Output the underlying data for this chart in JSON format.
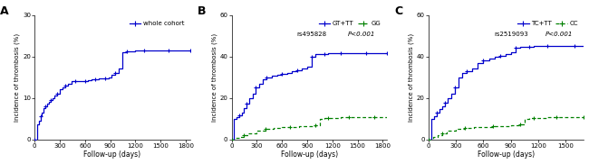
{
  "panel_A": {
    "label": "A",
    "ylabel": "Incidence of thrombosis (%)",
    "xlabel": "Follow-up (days)",
    "ylim": [
      0,
      30
    ],
    "xlim": [
      0,
      1850
    ],
    "yticks": [
      0,
      10,
      20,
      30
    ],
    "xticks": [
      0,
      300,
      600,
      900,
      1200,
      1500,
      1800
    ],
    "legend": "whole cohort",
    "line1": {
      "x": [
        0,
        30,
        50,
        70,
        90,
        110,
        130,
        150,
        170,
        190,
        210,
        240,
        270,
        300,
        330,
        360,
        400,
        440,
        480,
        520,
        560,
        600,
        640,
        680,
        720,
        760,
        800,
        840,
        880,
        920,
        960,
        1000,
        1050,
        1100,
        1150,
        1200,
        1300,
        1400,
        1500,
        1600,
        1700,
        1800,
        1850
      ],
      "y": [
        0,
        3.5,
        4.5,
        5.5,
        6.5,
        7.5,
        8,
        8.5,
        9,
        9.5,
        10,
        10.5,
        11,
        12,
        12.5,
        13,
        13.5,
        14,
        14,
        14,
        14,
        14,
        14.2,
        14.4,
        14.5,
        14.6,
        14.7,
        14.8,
        15,
        15.5,
        16,
        17,
        21,
        21.2,
        21.3,
        21.5,
        21.5,
        21.5,
        21.5,
        21.5,
        21.5,
        21.5,
        21.5
      ],
      "color": "#0000CC",
      "linestyle": "solid"
    }
  },
  "panel_B": {
    "label": "B",
    "ylabel": "Incidence of thrombosis (%)",
    "xlabel": "Follow-up (days)",
    "ylim": [
      0,
      60
    ],
    "xlim": [
      0,
      1850
    ],
    "yticks": [
      0,
      20,
      40,
      60
    ],
    "xticks": [
      0,
      300,
      600,
      900,
      1200,
      1500,
      1800
    ],
    "snp": "rs495828",
    "pval": "P<0.001",
    "legend1": "GT+TT",
    "legend2": "GG",
    "line1": {
      "x": [
        0,
        30,
        60,
        90,
        120,
        150,
        180,
        210,
        250,
        290,
        330,
        370,
        420,
        480,
        540,
        600,
        660,
        720,
        780,
        840,
        900,
        950,
        1000,
        1050,
        1100,
        1150,
        1200,
        1300,
        1400,
        1500,
        1600,
        1700,
        1800,
        1850
      ],
      "y": [
        0,
        10,
        10.5,
        11.5,
        13,
        15,
        17,
        20,
        22,
        25,
        27,
        29,
        30,
        30.5,
        31,
        31.5,
        32,
        33,
        33.5,
        34,
        35,
        40,
        41,
        41.2,
        41.3,
        41.4,
        41.5,
        41.5,
        41.5,
        41.5,
        41.5,
        41.5,
        41.5,
        41.5
      ],
      "color": "#0000CC",
      "linestyle": "solid"
    },
    "line2": {
      "x": [
        0,
        50,
        100,
        150,
        200,
        300,
        400,
        500,
        600,
        700,
        800,
        900,
        1000,
        1050,
        1100,
        1150,
        1200,
        1300,
        1400,
        1500,
        1600,
        1700,
        1800,
        1850
      ],
      "y": [
        0,
        0.5,
        1,
        2,
        3,
        4,
        5,
        5.5,
        6,
        6,
        6.2,
        6.5,
        6.8,
        10,
        10.2,
        10.3,
        10.4,
        10.5,
        10.5,
        10.5,
        10.5,
        10.5,
        10.5,
        10.5
      ],
      "color": "#008000",
      "linestyle": "dashed"
    }
  },
  "panel_C": {
    "label": "C",
    "ylabel": "Incidence of thrombosis (%)",
    "xlabel": "Follow-up (days)",
    "ylim": [
      0,
      60
    ],
    "xlim": [
      0,
      1700
    ],
    "yticks": [
      0,
      20,
      40,
      60
    ],
    "xticks": [
      0,
      300,
      600,
      900,
      1200,
      1500
    ],
    "snp": "rs2519093",
    "pval": "P<0.001",
    "legend1": "TC+TT",
    "legend2": "CC",
    "line1": {
      "x": [
        0,
        30,
        60,
        90,
        120,
        150,
        180,
        210,
        250,
        290,
        330,
        370,
        420,
        480,
        540,
        600,
        660,
        720,
        780,
        840,
        900,
        950,
        1000,
        1050,
        1100,
        1150,
        1200,
        1300,
        1400,
        1500,
        1600,
        1700
      ],
      "y": [
        0,
        10,
        11,
        13,
        14.5,
        16,
        17.5,
        20,
        22,
        25,
        30,
        32,
        33,
        34,
        37,
        38,
        39,
        40,
        40.5,
        41,
        42,
        44,
        44.5,
        44.7,
        44.8,
        44.9,
        45,
        45,
        45,
        45,
        45,
        45
      ],
      "color": "#0000CC",
      "linestyle": "solid"
    },
    "line2": {
      "x": [
        0,
        50,
        100,
        150,
        200,
        300,
        400,
        500,
        600,
        700,
        800,
        900,
        1000,
        1050,
        1100,
        1150,
        1200,
        1300,
        1400,
        1500,
        1600,
        1700
      ],
      "y": [
        0,
        1,
        2,
        3,
        4,
        5,
        5.5,
        6,
        6,
        6.2,
        6.5,
        6.8,
        7,
        10,
        10.2,
        10.3,
        10.4,
        10.5,
        10.5,
        10.5,
        10.5,
        10.5
      ],
      "color": "#008000",
      "linestyle": "dashed"
    }
  },
  "blue": "#0000CC",
  "green": "#008000"
}
